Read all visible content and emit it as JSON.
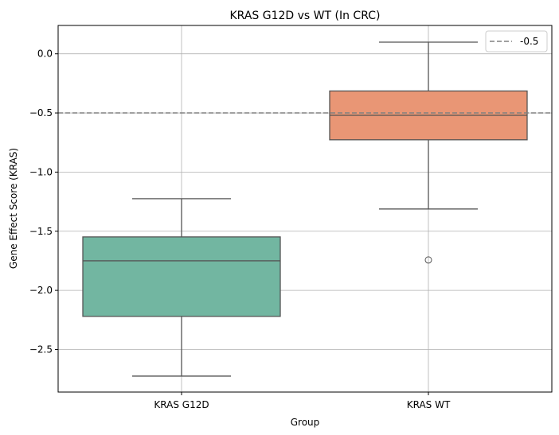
{
  "chart_data": {
    "type": "box",
    "title": "KRAS G12D vs WT (In CRC)",
    "xlabel": "Group",
    "ylabel": "Gene Effect Score (KRAS)",
    "ylim": [
      -2.86,
      0.24
    ],
    "yticks": [
      0.0,
      -0.5,
      -1.0,
      -1.5,
      -2.0,
      -2.5
    ],
    "ytick_labels": [
      "0.0",
      "−0.5",
      "−1.0",
      "−1.5",
      "−2.0",
      "−2.5"
    ],
    "grid": true,
    "categories": [
      "KRAS G12D",
      "KRAS WT"
    ],
    "boxes": [
      {
        "category": "KRAS G12D",
        "whisker_low": -2.725,
        "q1": -2.22,
        "median": -1.75,
        "q3": -1.548,
        "whisker_high": -1.225,
        "outliers": [],
        "color": "#72b6a1"
      },
      {
        "category": "KRAS WT",
        "whisker_low": -1.312,
        "q1": -0.727,
        "median": -0.52,
        "q3": -0.314,
        "whisker_high": 0.099,
        "outliers": [
          -1.743
        ],
        "color": "#e99675"
      }
    ],
    "reference_line": {
      "y": -0.5,
      "label": "-0.5",
      "style": "dashed",
      "color": "#808080"
    },
    "legend": {
      "placement": "top-right",
      "entries": [
        "-0.5"
      ]
    }
  }
}
